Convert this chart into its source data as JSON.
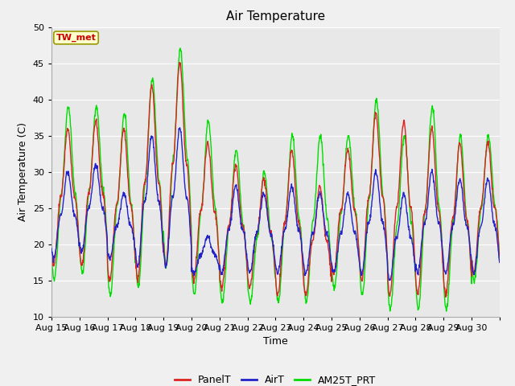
{
  "title": "Air Temperature",
  "xlabel": "Time",
  "ylabel": "Air Temperature (C)",
  "ylim": [
    10,
    50
  ],
  "yticks": [
    10,
    15,
    20,
    25,
    30,
    35,
    40,
    45,
    50
  ],
  "x_labels": [
    "Aug 15",
    "Aug 16",
    "Aug 17",
    "Aug 18",
    "Aug 19",
    "Aug 20",
    "Aug 21",
    "Aug 22",
    "Aug 23",
    "Aug 24",
    "Aug 25",
    "Aug 26",
    "Aug 27",
    "Aug 28",
    "Aug 29",
    "Aug 30"
  ],
  "annotation_text": "TW_met",
  "annotation_color": "#cc0000",
  "annotation_box_facecolor": "#ffffcc",
  "annotation_box_edgecolor": "#999900",
  "panel_color": "#dd2222",
  "air_color": "#2222cc",
  "am25t_color": "#00dd00",
  "background_color": "#e8e8e8",
  "legend_labels": [
    "PanelT",
    "AirT",
    "AM25T_PRT"
  ],
  "title_fontsize": 11,
  "axis_label_fontsize": 9,
  "tick_fontsize": 8,
  "n_points": 1440
}
